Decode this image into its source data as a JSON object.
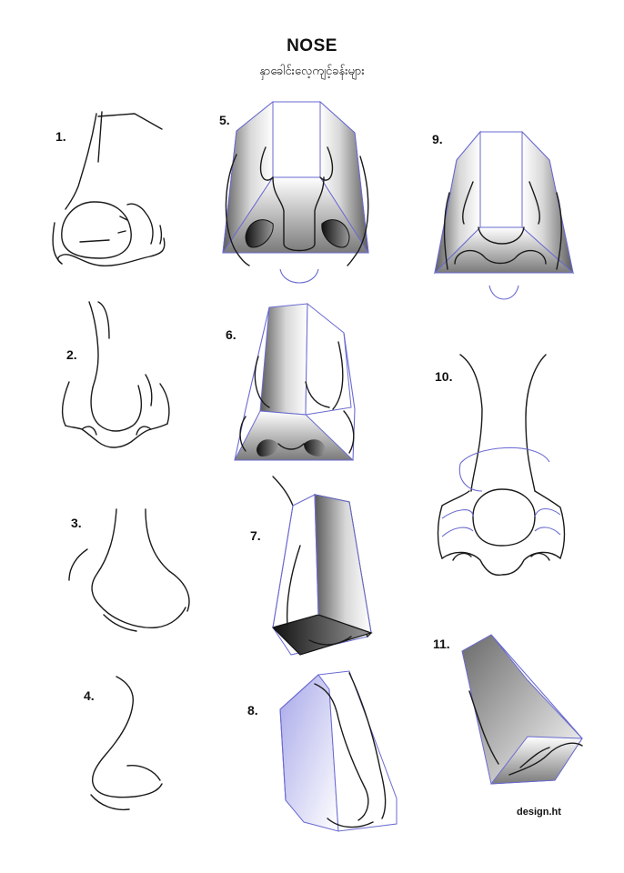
{
  "header": {
    "title": "NOSE",
    "subtitle": "နှာခေါင်းလေ့ကျင့်ခန်းများ"
  },
  "figures": [
    {
      "id": 1,
      "label": "1."
    },
    {
      "id": 2,
      "label": "2."
    },
    {
      "id": 3,
      "label": "3."
    },
    {
      "id": 4,
      "label": "4."
    },
    {
      "id": 5,
      "label": "5."
    },
    {
      "id": 6,
      "label": "6."
    },
    {
      "id": 7,
      "label": "7."
    },
    {
      "id": 8,
      "label": "8."
    },
    {
      "id": 9,
      "label": "9."
    },
    {
      "id": 10,
      "label": "10."
    },
    {
      "id": 11,
      "label": "11."
    }
  ],
  "footer": {
    "credit": "design.ht"
  },
  "colors": {
    "line": "#1a1a1a",
    "construction": "#6a6ad0",
    "shade_dark": "#111111",
    "shade_light": "#ffffff",
    "tint": "#b8b8ee"
  }
}
